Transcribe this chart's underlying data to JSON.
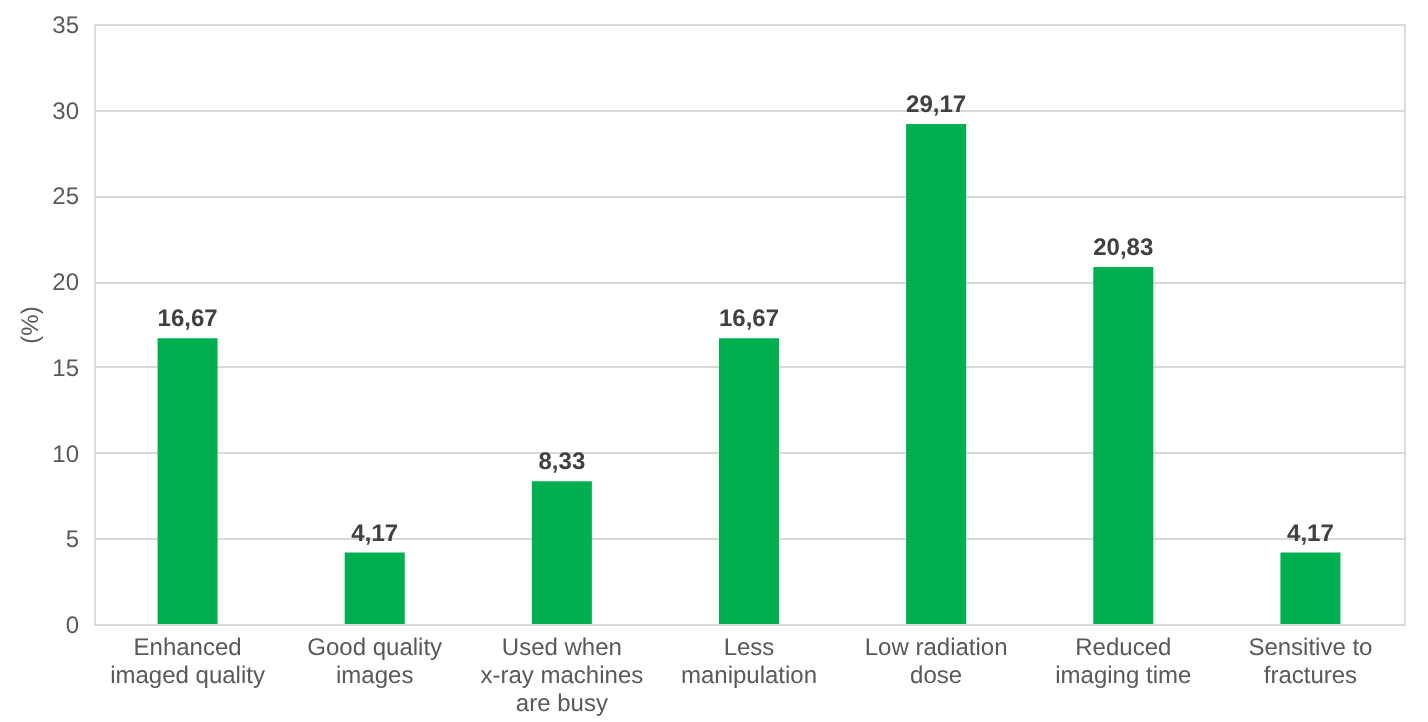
{
  "chart_data": {
    "type": "bar",
    "ylabel": "(%)",
    "categories": [
      "Enhanced imaged quality",
      "Good quality images",
      "Used when x-ray machines are busy",
      "Less manipulation",
      "Low radiation dose",
      "Reduced imaging time",
      "Sensitive to fractures"
    ],
    "values": [
      16.67,
      4.17,
      8.33,
      16.67,
      29.17,
      20.83,
      4.17
    ],
    "value_labels": [
      "16,67",
      "4,17",
      "8,33",
      "16,67",
      "29,17",
      "20,83",
      "4,17"
    ],
    "color": "#00b050",
    "ylim": [
      0,
      35
    ],
    "yticks": [
      0,
      5,
      10,
      15,
      20,
      25,
      30,
      35
    ],
    "grid": "y"
  }
}
